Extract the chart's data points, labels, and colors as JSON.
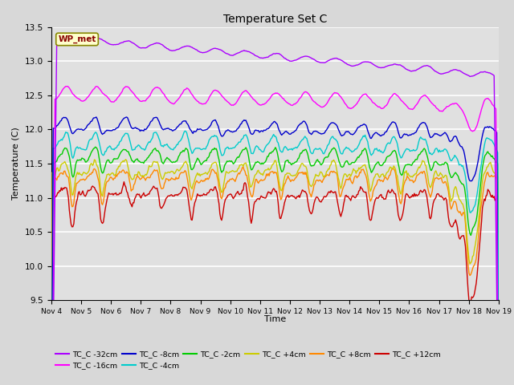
{
  "title": "Temperature Set C",
  "xlabel": "Time",
  "ylabel": "Temperature (C)",
  "ylim": [
    9.5,
    13.5
  ],
  "xlim": [
    0,
    15
  ],
  "yticks": [
    9.5,
    10.0,
    10.5,
    11.0,
    11.5,
    12.0,
    12.5,
    13.0,
    13.5
  ],
  "xtick_labels": [
    "Nov 4",
    "Nov 5",
    "Nov 6",
    "Nov 7",
    "Nov 8",
    "Nov 9",
    "Nov 10",
    "Nov 11",
    "Nov 12",
    "Nov 13",
    "Nov 14",
    "Nov 15",
    "Nov 16",
    "Nov 17",
    "Nov 18",
    "Nov 19"
  ],
  "series_colors": {
    "TC_C -32cm": "#aa00ff",
    "TC_C -16cm": "#ff00ff",
    "TC_C -8cm": "#0000cc",
    "TC_C -4cm": "#00cccc",
    "TC_C -2cm": "#00cc00",
    "TC_C +4cm": "#cccc00",
    "TC_C +8cm": "#ff8800",
    "TC_C +12cm": "#cc0000"
  },
  "wp_met_box_color": "#ffffcc",
  "wp_met_text_color": "#880000",
  "wp_met_border_color": "#888800",
  "background_color": "#e0e0e0",
  "grid_color": "#ffffff",
  "n_points": 500,
  "figsize": [
    6.4,
    4.8
  ],
  "dpi": 100
}
